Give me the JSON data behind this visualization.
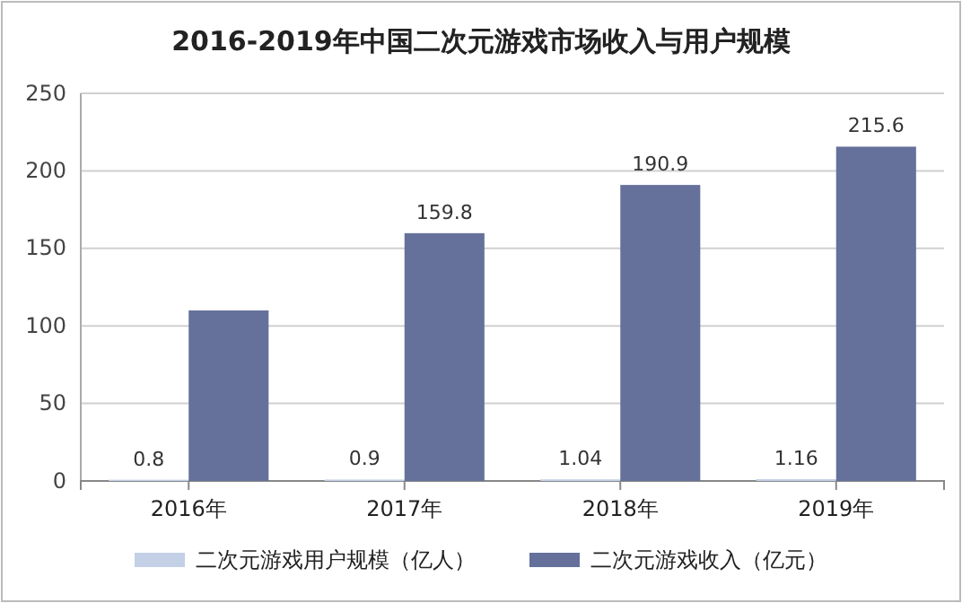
{
  "chart_data": {
    "type": "bar",
    "title": "2016-2019年中国二次元游戏市场收入与用户规模",
    "categories": [
      "2016年",
      "2017年",
      "2018年",
      "2019年"
    ],
    "series": [
      {
        "name": "二次元游戏用户规模（亿人）",
        "color": "#c3d0e6",
        "values": [
          0.8,
          0.9,
          1.04,
          1.16
        ],
        "value_labels": [
          "0.8",
          "0.9",
          "1.04",
          "1.16"
        ]
      },
      {
        "name": "二次元游戏收入（亿元）",
        "color": "#65719b",
        "values": [
          110,
          159.8,
          190.9,
          215.6
        ],
        "value_labels": [
          null,
          "159.8",
          "190.9",
          "215.6"
        ]
      }
    ],
    "ylim": [
      0,
      250
    ],
    "yticks": [
      0,
      50,
      100,
      150,
      200,
      250
    ],
    "grid": "y",
    "legend": "bottom"
  }
}
